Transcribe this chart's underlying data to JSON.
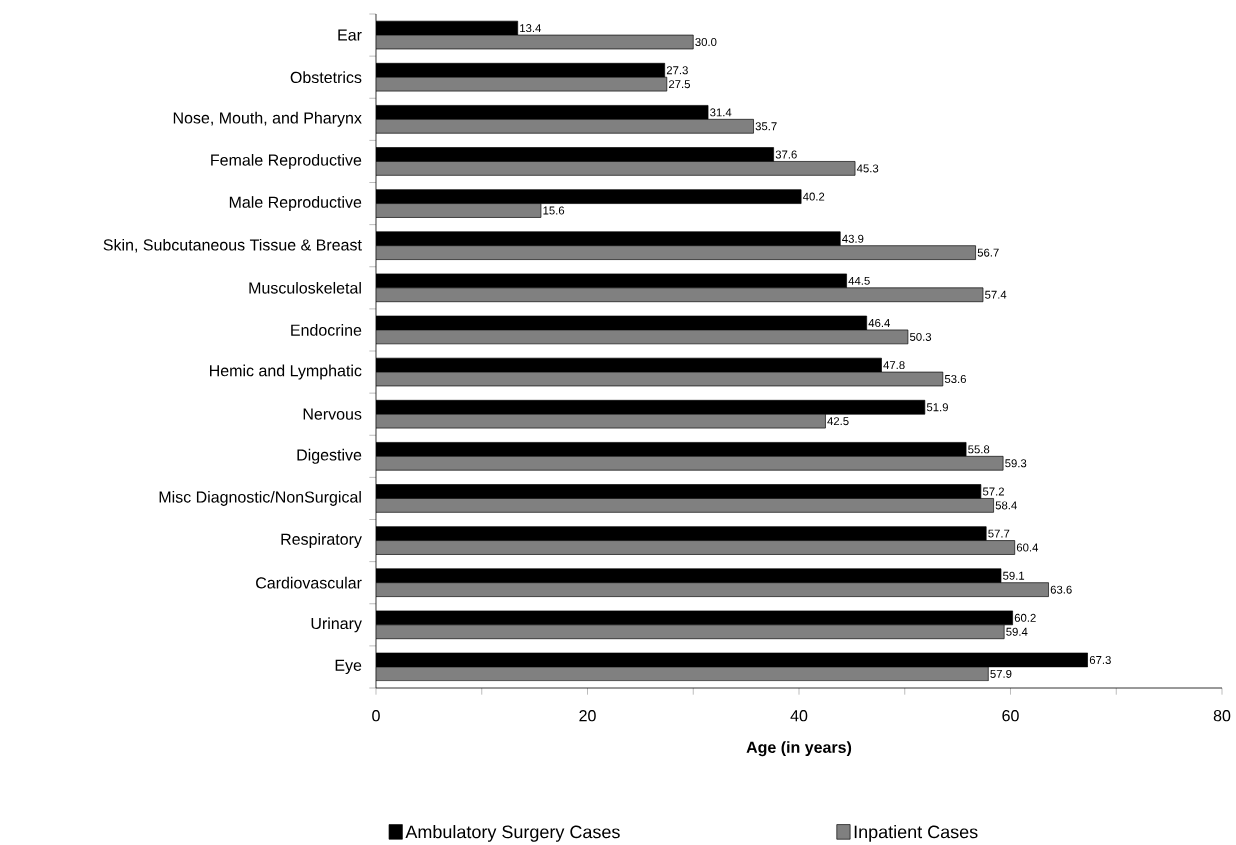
{
  "chart_data": {
    "type": "bar",
    "orientation": "horizontal",
    "xlabel": "Age (in years)",
    "categories": [
      "Ear",
      "Obstetrics",
      "Nose, Mouth, and Pharynx",
      "Female Reproductive",
      "Male Reproductive",
      "Skin, Subcutaneous Tissue & Breast",
      "Musculoskeletal",
      "Endocrine",
      "Hemic and Lymphatic",
      "Nervous",
      "Digestive",
      "Misc Diagnostic/NonSurgical",
      "Respiratory",
      "Cardiovascular",
      "Urinary",
      "Eye"
    ],
    "series": [
      {
        "name": "Ambulatory Surgery Cases",
        "color": "#000000",
        "values": [
          13.4,
          27.3,
          31.4,
          37.6,
          40.2,
          43.9,
          44.5,
          46.4,
          47.8,
          51.9,
          55.8,
          57.2,
          57.7,
          59.1,
          60.2,
          67.3
        ],
        "value_labels": [
          "13.4",
          "27.3",
          "31.4",
          "37.6",
          "40.2",
          "43.9",
          "44.5",
          "46.4",
          "47.8",
          "51.9",
          "55.8",
          "57.2",
          "57.7",
          "59.1",
          "60.2",
          "67.3"
        ]
      },
      {
        "name": "Inpatient Cases",
        "color": "#808080",
        "values": [
          30.0,
          27.5,
          35.7,
          45.3,
          15.6,
          56.7,
          57.4,
          50.3,
          53.6,
          42.5,
          59.3,
          58.4,
          60.4,
          63.6,
          59.4,
          57.9
        ],
        "value_labels": [
          "30.0",
          "27.5",
          "35.7",
          "45.3",
          "15.6",
          "56.7",
          "57.4",
          "50.3",
          "53.6",
          "42.5",
          "59.3",
          "58.4",
          "60.4",
          "63.6",
          "59.4",
          "57.9"
        ]
      }
    ],
    "xlim": [
      0,
      80
    ],
    "xticks": [
      0,
      {
        "value": 10,
        "label": null
      },
      20,
      {
        "value": 30,
        "label": null
      },
      40,
      {
        "value": 50,
        "label": null
      },
      60,
      {
        "value": 70,
        "label": null
      },
      80
    ],
    "legend": "bottom",
    "grid": false
  }
}
